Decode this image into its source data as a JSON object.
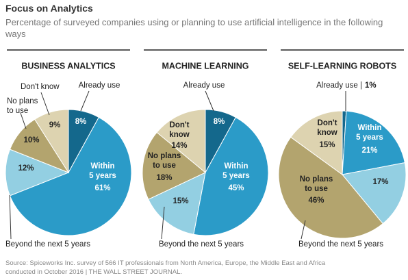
{
  "title": "Focus on Analytics",
  "subtitle": "Percentage of surveyed companies using or planning to use artificial intelligence in the following ways",
  "source": "Source: Spiceworks Inc. survey of 566 IT professionals from North America, Europe, the Middle East and Africa conducted in October 2016 | THE WALL STREET JOURNAL.",
  "chart_data": [
    {
      "type": "pie",
      "title": "BUSINESS ANALYTICS",
      "categories": [
        "Already use",
        "Within\n5 years",
        "Beyond the next 5 years",
        "No plans\nto use",
        "Don't know"
      ],
      "values": [
        8,
        61,
        12,
        10,
        9
      ],
      "value_labels": [
        "8%",
        "61%",
        "12%",
        "10%",
        "9%"
      ],
      "colors": [
        "#14688c",
        "#2b9bc8",
        "#93cfe2",
        "#b3a46e",
        "#ddd3b0"
      ]
    },
    {
      "type": "pie",
      "title": "MACHINE LEARNING",
      "categories": [
        "Already use",
        "Within\n5 years",
        "Beyond the next 5 years",
        "No plans\nto use",
        "Don't\nknow"
      ],
      "values": [
        8,
        45,
        15,
        18,
        14
      ],
      "value_labels": [
        "8%",
        "45%",
        "15%",
        "18%",
        "14%"
      ],
      "colors": [
        "#14688c",
        "#2b9bc8",
        "#93cfe2",
        "#b3a46e",
        "#ddd3b0"
      ]
    },
    {
      "type": "pie",
      "title": "SELF-LEARNING ROBOTS",
      "categories": [
        "Already use |",
        "Within\n5 years",
        "Beyond the next 5 years",
        "No plans\nto use",
        "Don't\nknow"
      ],
      "values": [
        1,
        21,
        17,
        46,
        15
      ],
      "value_labels": [
        "1%",
        "21%",
        "17%",
        "46%",
        "15%"
      ],
      "colors": [
        "#14688c",
        "#2b9bc8",
        "#93cfe2",
        "#b3a46e",
        "#ddd3b0"
      ]
    }
  ]
}
